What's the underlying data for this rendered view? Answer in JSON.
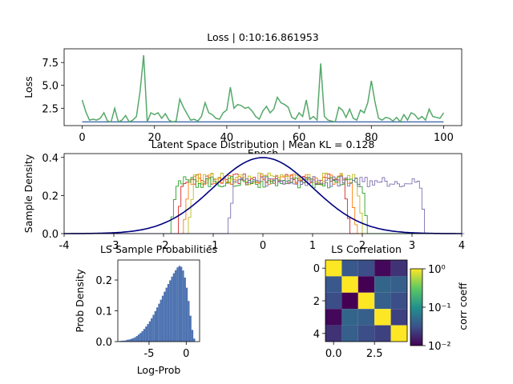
{
  "chart_data": [
    {
      "type": "line",
      "title": "Loss | 0:10:16.861953",
      "xlabel": "Epoch",
      "ylabel": "Loss",
      "xlim": [
        -5,
        105
      ],
      "ylim": [
        0.6,
        9.0
      ],
      "xticks": [
        "0",
        "20",
        "40",
        "60",
        "80",
        "100"
      ],
      "yticks": [
        "2.5",
        "5.0",
        "7.5"
      ],
      "series": [
        {
          "color": "#55a868",
          "values": [
            3.4,
            2.1,
            1.2,
            1.3,
            1.2,
            1.4,
            2.0,
            1.1,
            1.0,
            2.5,
            1.0,
            1.2,
            1.7,
            1.0,
            1.2,
            1.6,
            4.3,
            8.3,
            1.0,
            2.0,
            1.8,
            2.0,
            1.4,
            1.9,
            1.2,
            1.0,
            1.1,
            3.5,
            2.6,
            1.9,
            1.2,
            1.3,
            1.1,
            1.6,
            3.1,
            2.0,
            1.8,
            1.4,
            1.3,
            2.0,
            2.3,
            4.8,
            2.5,
            2.9,
            2.8,
            2.5,
            2.6,
            2.2,
            1.6,
            1.3,
            2.2,
            2.7,
            2.0,
            2.4,
            3.7,
            3.1,
            2.9,
            2.6,
            1.5,
            1.3,
            2.0,
            1.6,
            3.4,
            1.3,
            1.6,
            1.2,
            7.4,
            1.6,
            1.2,
            1.1,
            1.0,
            2.6,
            2.3,
            1.5,
            2.4,
            1.4,
            1.2,
            2.3,
            2.0,
            3.1,
            5.5,
            3.2,
            1.4,
            1.2,
            1.5,
            1.4,
            1.1,
            1.5,
            1.0,
            1.8,
            1.2,
            2.0,
            1.8,
            1.3,
            1.6,
            1.2,
            2.4,
            1.6,
            1.5,
            1.4,
            2.0
          ]
        },
        {
          "color": "#4c72b0",
          "values": [
            1.0,
            1.0,
            1.0,
            1.0,
            1.0,
            1.0,
            1.0,
            1.0,
            1.0,
            1.0,
            1.0,
            1.0,
            1.0,
            1.0,
            1.0,
            1.0,
            1.0,
            1.0,
            1.0,
            1.0,
            1.0,
            1.0,
            1.0,
            1.0,
            1.0,
            1.0,
            1.0,
            1.0,
            1.0,
            1.0,
            1.0,
            1.0,
            1.0,
            1.0,
            1.0,
            1.0,
            1.0,
            1.0,
            1.0,
            1.0,
            1.0,
            1.0,
            1.0,
            1.0,
            1.0,
            1.0,
            1.0,
            1.0,
            1.0,
            1.0,
            1.0,
            1.0,
            1.0,
            1.0,
            1.0,
            1.0,
            1.0,
            1.0,
            1.0,
            1.0,
            1.0,
            1.0,
            1.0,
            1.0,
            1.0,
            1.0,
            1.0,
            1.0,
            1.0,
            1.0,
            1.0,
            1.0,
            1.0,
            1.0,
            1.0,
            1.0,
            1.0,
            1.0,
            1.0,
            1.0,
            1.0,
            1.0,
            1.0,
            1.0,
            1.0,
            1.0,
            1.0,
            1.0,
            1.0,
            1.0,
            1.0,
            1.0,
            1.0,
            1.0,
            1.0,
            1.0,
            1.0,
            1.0,
            1.0,
            1.0,
            1.0
          ]
        }
      ]
    },
    {
      "type": "line",
      "title": "Latent Space Distribution | Mean KL = 0.128",
      "xlabel": "",
      "ylabel": "Sample Density",
      "xlim": [
        -4,
        4
      ],
      "ylim": [
        0,
        0.42
      ],
      "xticks": [
        "-4",
        "-3",
        "-2",
        "-1",
        "0",
        "1",
        "2",
        "3",
        "4"
      ],
      "yticks": [
        "0.0",
        "0.2",
        "0.4"
      ],
      "reference_curve": {
        "color": "#000080",
        "kind": "standard normal pdf"
      },
      "histograms": [
        {
          "color": "#d62728",
          "range": [
            -1.75,
            1.72
          ],
          "level": 0.285
        },
        {
          "color": "#ff7f0e",
          "range": [
            -1.62,
            1.85
          ],
          "level": 0.285
        },
        {
          "color": "#bcbd22",
          "range": [
            -1.52,
            1.98
          ],
          "level": 0.29
        },
        {
          "color": "#2ca02c",
          "range": [
            -1.88,
            2.08
          ],
          "level": 0.27
        },
        {
          "color": "#8172b2",
          "range": [
            -0.72,
            3.24
          ],
          "level": 0.275
        }
      ]
    },
    {
      "type": "bar",
      "title": "LS Sample Probabilities",
      "xlabel": "Log-Prob",
      "ylabel": "Prob Density",
      "xlim": [
        -9.2,
        1.8
      ],
      "ylim": [
        0,
        0.265
      ],
      "xticks": [
        "-5",
        "0"
      ],
      "yticks": [
        "0.0",
        "0.1",
        "0.2"
      ],
      "color": "#4c72b0",
      "bins_from": -9.0,
      "bins_to": 1.2,
      "values": [
        0.002,
        0.003,
        0.003,
        0.004,
        0.006,
        0.007,
        0.009,
        0.011,
        0.014,
        0.018,
        0.023,
        0.028,
        0.034,
        0.041,
        0.049,
        0.057,
        0.066,
        0.076,
        0.087,
        0.099,
        0.111,
        0.123,
        0.136,
        0.149,
        0.162,
        0.175,
        0.187,
        0.199,
        0.211,
        0.222,
        0.232,
        0.241,
        0.246,
        0.243,
        0.231,
        0.208,
        0.175,
        0.132,
        0.084,
        0.038,
        0.01
      ]
    },
    {
      "type": "heatmap",
      "title": "LS Correlation",
      "xticks": [
        "0.0",
        "2.5"
      ],
      "yticks": [
        "0",
        "2",
        "4"
      ],
      "colorbar": {
        "label": "corr coeff",
        "scale": "log",
        "ticks": [
          "10⁻²",
          "10⁻¹",
          "10⁰"
        ]
      },
      "matrix": [
        [
          1.0,
          0.035,
          0.03,
          0.011,
          0.02
        ],
        [
          0.035,
          1.0,
          0.01,
          0.045,
          0.04
        ],
        [
          0.03,
          0.01,
          1.0,
          0.04,
          0.03
        ],
        [
          0.011,
          0.045,
          0.04,
          1.0,
          0.025
        ],
        [
          0.02,
          0.04,
          0.03,
          0.025,
          1.0
        ]
      ]
    }
  ]
}
